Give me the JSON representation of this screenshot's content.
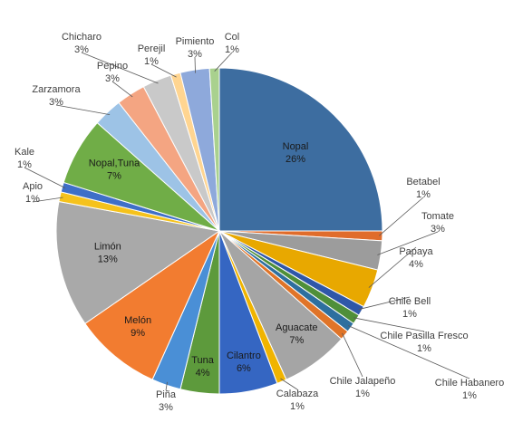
{
  "chart_data": {
    "type": "pie",
    "title": "",
    "start": "12 o'clock",
    "direction": "clockwise",
    "legend": "none",
    "slices": [
      {
        "name": "Nopal",
        "value": 26,
        "label": "26%",
        "color": "#3d6da0"
      },
      {
        "name": "Betabel",
        "value": 1,
        "label": "1%",
        "color": "#e06c2b"
      },
      {
        "name": "Tomate",
        "value": 3,
        "label": "3%",
        "color": "#9c9c9c"
      },
      {
        "name": "Papaya",
        "value": 4,
        "label": "4%",
        "color": "#e8a800"
      },
      {
        "name": "Chile Bell",
        "value": 1,
        "label": "1%",
        "color": "#2f57a8"
      },
      {
        "name": "Chile Pasilla Fresco",
        "value": 1,
        "label": "1%",
        "color": "#4f8f39"
      },
      {
        "name": "Chile Habanero",
        "value": 1,
        "label": "1%",
        "color": "#2e6f9f"
      },
      {
        "name": "Chile Jalapeño",
        "value": 1,
        "label": "1%",
        "color": "#e07428"
      },
      {
        "name": "Aguacate",
        "value": 7,
        "label": "7%",
        "color": "#a5a5a5"
      },
      {
        "name": "Calabaza",
        "value": 1,
        "label": "1%",
        "color": "#f0b400"
      },
      {
        "name": "Cilantro",
        "value": 6,
        "label": "6%",
        "color": "#3566c2"
      },
      {
        "name": "Tuna",
        "value": 4,
        "label": "4%",
        "color": "#5d9a3c"
      },
      {
        "name": "Piña",
        "value": 3,
        "label": "3%",
        "color": "#4a8fd6"
      },
      {
        "name": "Melón",
        "value": 9,
        "label": "9%",
        "color": "#f27c30"
      },
      {
        "name": "Limón",
        "value": 13,
        "label": "13%",
        "color": "#a9a9a9"
      },
      {
        "name": "Apio",
        "value": 1,
        "label": "1%",
        "color": "#f5c21c"
      },
      {
        "name": "Kale",
        "value": 1,
        "label": "1%",
        "color": "#3e6fc8"
      },
      {
        "name": "Nopal,Tuna",
        "value": 7,
        "label": "7%",
        "color": "#70ad47"
      },
      {
        "name": "Zarzamora",
        "value": 3,
        "label": "3%",
        "color": "#9dc3e6"
      },
      {
        "name": "Pepino",
        "value": 3,
        "label": "3%",
        "color": "#f4a582"
      },
      {
        "name": "Chicharo",
        "value": 3,
        "label": "3%",
        "color": "#c9c9c9"
      },
      {
        "name": "Perejil",
        "value": 1,
        "label": "1%",
        "color": "#ffd591"
      },
      {
        "name": "Pimiento",
        "value": 3,
        "label": "3%",
        "color": "#8ea9db"
      },
      {
        "name": "Col",
        "value": 1,
        "label": "1%",
        "color": "#a9d18e"
      }
    ]
  }
}
